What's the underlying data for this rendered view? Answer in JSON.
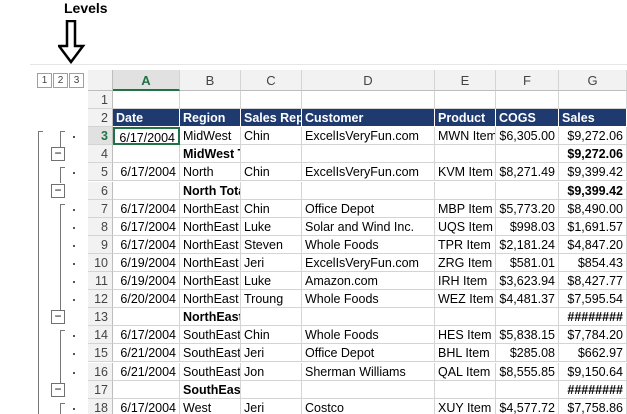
{
  "annotation": "Levels",
  "outline_levels": [
    "1",
    "2",
    "3"
  ],
  "columns": [
    "A",
    "B",
    "C",
    "D",
    "E",
    "F",
    "G"
  ],
  "rows": [
    {
      "number": "1",
      "cells": [
        null,
        null,
        null,
        null,
        null,
        null,
        null
      ]
    },
    {
      "number": "2",
      "cells": [
        "Date",
        "Region",
        "Sales Rep",
        "Customer",
        "Product",
        "COGS",
        "Sales"
      ]
    },
    {
      "number": "3",
      "cells": [
        "6/17/2004",
        "MidWest",
        "Chin",
        "ExcelIsVeryFun.com",
        "MWN Item",
        "$6,305.00",
        "$9,272.06"
      ]
    },
    {
      "number": "4",
      "cells": [
        null,
        "MidWest Total",
        null,
        null,
        null,
        null,
        "$9,272.06"
      ]
    },
    {
      "number": "5",
      "cells": [
        "6/17/2004",
        "North",
        "Chin",
        "ExcelIsVeryFun.com",
        "KVM Item",
        "$8,271.49",
        "$9,399.42"
      ]
    },
    {
      "number": "6",
      "cells": [
        null,
        "North Total",
        null,
        null,
        null,
        null,
        "$9,399.42"
      ]
    },
    {
      "number": "7",
      "cells": [
        "6/17/2004",
        "NorthEast",
        "Chin",
        "Office Depot",
        "MBP Item",
        "$5,773.20",
        "$8,490.00"
      ]
    },
    {
      "number": "8",
      "cells": [
        "6/17/2004",
        "NorthEast",
        "Luke",
        "Solar and Wind Inc.",
        "UQS Item",
        "$998.03",
        "$1,691.57"
      ]
    },
    {
      "number": "9",
      "cells": [
        "6/17/2004",
        "NorthEast",
        "Steven",
        "Whole Foods",
        "TPR Item",
        "$2,181.24",
        "$4,847.20"
      ]
    },
    {
      "number": "10",
      "cells": [
        "6/19/2004",
        "NorthEast",
        "Jeri",
        "ExcelIsVeryFun.com",
        "ZRG Item",
        "$581.01",
        "$854.43"
      ]
    },
    {
      "number": "11",
      "cells": [
        "6/19/2004",
        "NorthEast",
        "Luke",
        "Amazon.com",
        "IRH Item",
        "$3,623.94",
        "$8,427.77"
      ]
    },
    {
      "number": "12",
      "cells": [
        "6/20/2004",
        "NorthEast",
        "Troung",
        "Whole Foods",
        "WEZ Item",
        "$4,481.37",
        "$7,595.54"
      ]
    },
    {
      "number": "13",
      "cells": [
        null,
        "NorthEast Total",
        null,
        null,
        null,
        null,
        "########"
      ]
    },
    {
      "number": "14",
      "cells": [
        "6/17/2004",
        "SouthEast",
        "Chin",
        "Whole Foods",
        "HES Item",
        "$5,838.15",
        "$7,784.20"
      ]
    },
    {
      "number": "15",
      "cells": [
        "6/21/2004",
        "SouthEast",
        "Jeri",
        "Office Depot",
        "BHL Item",
        "$285.08",
        "$662.97"
      ]
    },
    {
      "number": "16",
      "cells": [
        "6/21/2004",
        "SouthEast",
        "Jon",
        "Sherman Williams",
        "QAL Item",
        "$8,555.85",
        "$9,150.64"
      ]
    },
    {
      "number": "17",
      "cells": [
        null,
        "SouthEast Total",
        null,
        null,
        null,
        null,
        "########"
      ]
    },
    {
      "number": "18",
      "cells": [
        "6/17/2004",
        "West",
        "Jeri",
        "Costco",
        "XUY Item",
        "$4,577.72",
        "$7,758.86"
      ]
    }
  ]
}
